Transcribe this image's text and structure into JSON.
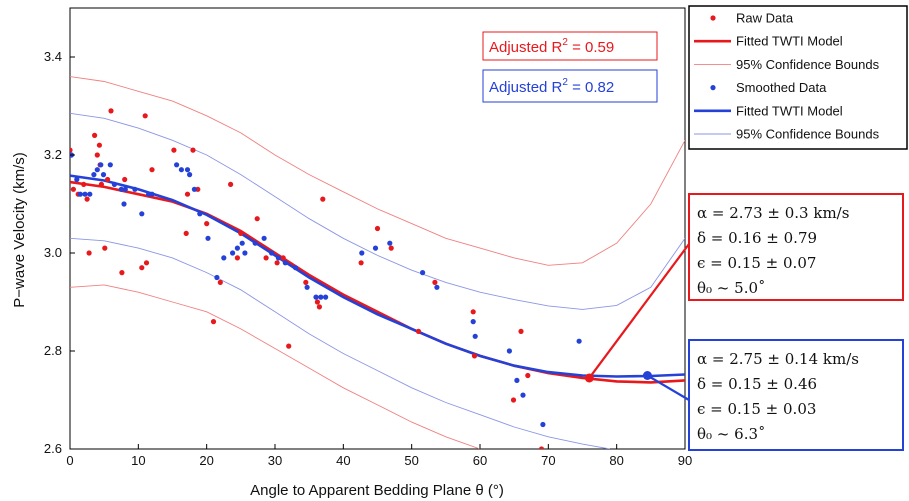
{
  "chart_data": {
    "type": "scatter",
    "title": "",
    "xlabel": "Angle to Apparent Bedding Plane θ  (°)",
    "ylabel": "P−wave Velocity (km/s)",
    "xlim": [
      0,
      90
    ],
    "ylim": [
      2.6,
      3.5
    ],
    "x_ticks": [
      "0",
      "10",
      "20",
      "30",
      "40",
      "50",
      "60",
      "70",
      "80",
      "90"
    ],
    "y_ticks": [
      "2.6",
      "2.8",
      "3.0",
      "3.2",
      "3.4"
    ],
    "grid": false,
    "legend_position": "right",
    "colors": {
      "red": "#e8191d",
      "blue": "#2441d8",
      "red_light": "#f08080",
      "blue_light": "#8c96e6"
    },
    "legend": [
      {
        "label": "Raw Data",
        "kind": "dot",
        "color": "red"
      },
      {
        "label": "Fitted TWTI Model",
        "kind": "thick-line",
        "color": "red"
      },
      {
        "label": "95% Confidence Bounds",
        "kind": "thin-line",
        "color": "red_light"
      },
      {
        "label": "Smoothed Data",
        "kind": "dot",
        "color": "blue"
      },
      {
        "label": "Fitted TWTI Model",
        "kind": "thick-line",
        "color": "blue"
      },
      {
        "label": "95% Confidence Bounds",
        "kind": "thin-line",
        "color": "blue_light"
      }
    ],
    "annotations": {
      "red_r2": {
        "prefix": "Adjusted R",
        "sup": "2",
        "suffix": " = 0.59"
      },
      "blue_r2": {
        "prefix": "Adjusted R",
        "sup": "2",
        "suffix": " = 0.82"
      },
      "red_params": [
        "α = 2.73 ± 0.3 km/s",
        "δ = 0.16 ± 0.79",
        "ϵ = 0.15 ± 0.07",
        "θ₀ ~ 5.0˚"
      ],
      "blue_params": [
        "α = 2.75 ± 0.14 km/s",
        "δ = 0.15 ± 0.46",
        "ϵ = 0.15 ± 0.03",
        "θ₀ ~ 6.3˚"
      ],
      "red_marker": {
        "x": 76,
        "y": 2.745
      },
      "blue_marker": {
        "x": 84.5,
        "y": 2.75
      }
    },
    "series": [
      {
        "name": "Raw Data",
        "kind": "scatter",
        "color": "red",
        "points": [
          [
            0,
            3.21
          ],
          [
            0.2,
            3.2
          ],
          [
            0.5,
            3.13
          ],
          [
            1.2,
            3.12
          ],
          [
            2,
            3.14
          ],
          [
            2.5,
            3.11
          ],
          [
            2.8,
            3.0
          ],
          [
            3.6,
            3.24
          ],
          [
            4,
            3.2
          ],
          [
            4.3,
            3.22
          ],
          [
            4.4,
            3.18
          ],
          [
            4.6,
            3.14
          ],
          [
            5.1,
            3.01
          ],
          [
            5.5,
            3.15
          ],
          [
            6,
            3.29
          ],
          [
            7.6,
            2.96
          ],
          [
            8,
            3.15
          ],
          [
            10.5,
            2.97
          ],
          [
            11,
            3.28
          ],
          [
            11.2,
            2.98
          ],
          [
            12,
            3.17
          ],
          [
            15.2,
            3.21
          ],
          [
            17,
            3.04
          ],
          [
            17.2,
            3.12
          ],
          [
            18,
            3.21
          ],
          [
            18.7,
            3.13
          ],
          [
            20,
            3.06
          ],
          [
            21,
            2.86
          ],
          [
            22,
            2.94
          ],
          [
            23.5,
            3.14
          ],
          [
            24.5,
            2.99
          ],
          [
            25,
            3.04
          ],
          [
            27.4,
            3.07
          ],
          [
            28.7,
            2.99
          ],
          [
            30.3,
            2.98
          ],
          [
            31.2,
            2.99
          ],
          [
            32,
            2.81
          ],
          [
            34.5,
            2.94
          ],
          [
            36.2,
            2.9
          ],
          [
            36.5,
            2.89
          ],
          [
            37,
            3.11
          ],
          [
            42.6,
            2.98
          ],
          [
            45,
            3.05
          ],
          [
            47,
            3.01
          ],
          [
            51,
            2.84
          ],
          [
            53.4,
            2.94
          ],
          [
            59,
            2.88
          ],
          [
            59.2,
            2.79
          ],
          [
            64.9,
            2.7
          ],
          [
            66,
            2.84
          ],
          [
            67,
            2.75
          ],
          [
            69,
            2.6
          ]
        ]
      },
      {
        "name": "Smoothed Data",
        "kind": "scatter",
        "color": "blue",
        "points": [
          [
            0.2,
            3.2
          ],
          [
            1,
            3.15
          ],
          [
            1.5,
            3.12
          ],
          [
            2.2,
            3.12
          ],
          [
            2.9,
            3.12
          ],
          [
            3.5,
            3.16
          ],
          [
            4,
            3.17
          ],
          [
            4.5,
            3.18
          ],
          [
            4.9,
            3.16
          ],
          [
            5.9,
            3.18
          ],
          [
            6.5,
            3.14
          ],
          [
            7.5,
            3.13
          ],
          [
            7.9,
            3.1
          ],
          [
            8.1,
            3.13
          ],
          [
            9.5,
            3.13
          ],
          [
            10.5,
            3.08
          ],
          [
            11.5,
            3.12
          ],
          [
            12,
            3.12
          ],
          [
            15.6,
            3.18
          ],
          [
            16.3,
            3.17
          ],
          [
            17.2,
            3.17
          ],
          [
            17.5,
            3.16
          ],
          [
            18.2,
            3.13
          ],
          [
            19,
            3.08
          ],
          [
            20.2,
            3.03
          ],
          [
            21.5,
            2.95
          ],
          [
            22.5,
            2.99
          ],
          [
            23.8,
            3.0
          ],
          [
            24.5,
            3.01
          ],
          [
            25.2,
            3.02
          ],
          [
            25.6,
            3.0
          ],
          [
            27.1,
            3.02
          ],
          [
            28.4,
            3.03
          ],
          [
            29.5,
            3.0
          ],
          [
            30.5,
            2.99
          ],
          [
            31.5,
            2.98
          ],
          [
            33,
            2.97
          ],
          [
            34.7,
            2.93
          ],
          [
            36,
            2.91
          ],
          [
            36.7,
            2.91
          ],
          [
            37.4,
            2.91
          ],
          [
            42.7,
            3.0
          ],
          [
            44.7,
            3.01
          ],
          [
            46.8,
            3.02
          ],
          [
            51.6,
            2.96
          ],
          [
            53.7,
            2.93
          ],
          [
            59,
            2.86
          ],
          [
            59.3,
            2.83
          ],
          [
            64.3,
            2.8
          ],
          [
            65.4,
            2.74
          ],
          [
            66.3,
            2.71
          ],
          [
            69.2,
            2.65
          ],
          [
            74.5,
            2.82
          ]
        ]
      },
      {
        "name": "Fitted TWTI Model",
        "kind": "line",
        "color": "red",
        "points": [
          [
            0,
            3.145
          ],
          [
            5,
            3.135
          ],
          [
            10,
            3.12
          ],
          [
            15,
            3.105
          ],
          [
            20,
            3.08
          ],
          [
            25,
            3.045
          ],
          [
            30,
            3.0
          ],
          [
            35,
            2.955
          ],
          [
            40,
            2.915
          ],
          [
            45,
            2.88
          ],
          [
            50,
            2.845
          ],
          [
            55,
            2.815
          ],
          [
            60,
            2.79
          ],
          [
            65,
            2.77
          ],
          [
            70,
            2.755
          ],
          [
            75,
            2.745
          ],
          [
            80,
            2.738
          ],
          [
            85,
            2.736
          ],
          [
            90,
            2.74
          ]
        ]
      },
      {
        "name": "95% Confidence Bounds",
        "kind": "thin-line",
        "color": "red_light",
        "points": [
          [
            0,
            3.36
          ],
          [
            5,
            3.35
          ],
          [
            10,
            3.33
          ],
          [
            15,
            3.31
          ],
          [
            20,
            3.28
          ],
          [
            25,
            3.245
          ],
          [
            30,
            3.2
          ],
          [
            35,
            3.16
          ],
          [
            40,
            3.125
          ],
          [
            45,
            3.09
          ],
          [
            50,
            3.06
          ],
          [
            55,
            3.03
          ],
          [
            60,
            3.01
          ],
          [
            65,
            2.99
          ],
          [
            70,
            2.975
          ],
          [
            75,
            2.98
          ],
          [
            80,
            3.02
          ],
          [
            85,
            3.1
          ],
          [
            90,
            3.23
          ]
        ]
      },
      {
        "name": "95% Confidence Bounds",
        "kind": "thin-line",
        "color": "red_light",
        "points": [
          [
            0,
            2.93
          ],
          [
            5,
            2.935
          ],
          [
            10,
            2.92
          ],
          [
            15,
            2.9
          ],
          [
            20,
            2.88
          ],
          [
            25,
            2.845
          ],
          [
            30,
            2.805
          ],
          [
            35,
            2.765
          ],
          [
            40,
            2.725
          ],
          [
            45,
            2.69
          ],
          [
            50,
            2.655
          ],
          [
            55,
            2.625
          ],
          [
            60,
            2.6
          ],
          [
            65,
            2.575
          ],
          [
            70,
            2.545
          ]
        ]
      },
      {
        "name": "Fitted TWTI Model",
        "kind": "line",
        "color": "blue",
        "points": [
          [
            0,
            3.158
          ],
          [
            5,
            3.148
          ],
          [
            10,
            3.13
          ],
          [
            15,
            3.108
          ],
          [
            20,
            3.078
          ],
          [
            25,
            3.04
          ],
          [
            30,
            2.995
          ],
          [
            35,
            2.95
          ],
          [
            40,
            2.91
          ],
          [
            45,
            2.875
          ],
          [
            50,
            2.845
          ],
          [
            55,
            2.815
          ],
          [
            60,
            2.79
          ],
          [
            65,
            2.77
          ],
          [
            70,
            2.757
          ],
          [
            75,
            2.75
          ],
          [
            80,
            2.748
          ],
          [
            85,
            2.749
          ],
          [
            90,
            2.752
          ]
        ]
      },
      {
        "name": "95% Confidence Bounds",
        "kind": "thin-line",
        "color": "blue_light",
        "points": [
          [
            0,
            3.285
          ],
          [
            5,
            3.275
          ],
          [
            10,
            3.255
          ],
          [
            15,
            3.23
          ],
          [
            20,
            3.2
          ],
          [
            25,
            3.16
          ],
          [
            30,
            3.115
          ],
          [
            35,
            3.07
          ],
          [
            40,
            3.03
          ],
          [
            45,
            2.995
          ],
          [
            50,
            2.965
          ],
          [
            55,
            2.94
          ],
          [
            60,
            2.92
          ],
          [
            65,
            2.905
          ],
          [
            70,
            2.892
          ],
          [
            75,
            2.885
          ],
          [
            80,
            2.893
          ],
          [
            85,
            2.93
          ],
          [
            90,
            3.03
          ]
        ]
      },
      {
        "name": "95% Confidence Bounds",
        "kind": "thin-line",
        "color": "blue_light",
        "points": [
          [
            0,
            3.03
          ],
          [
            5,
            3.025
          ],
          [
            10,
            3.01
          ],
          [
            15,
            2.99
          ],
          [
            20,
            2.96
          ],
          [
            25,
            2.925
          ],
          [
            30,
            2.88
          ],
          [
            35,
            2.835
          ],
          [
            40,
            2.795
          ],
          [
            45,
            2.76
          ],
          [
            50,
            2.725
          ],
          [
            55,
            2.695
          ],
          [
            60,
            2.67
          ],
          [
            65,
            2.645
          ],
          [
            70,
            2.625
          ],
          [
            75,
            2.61
          ],
          [
            79,
            2.6
          ]
        ]
      }
    ]
  }
}
